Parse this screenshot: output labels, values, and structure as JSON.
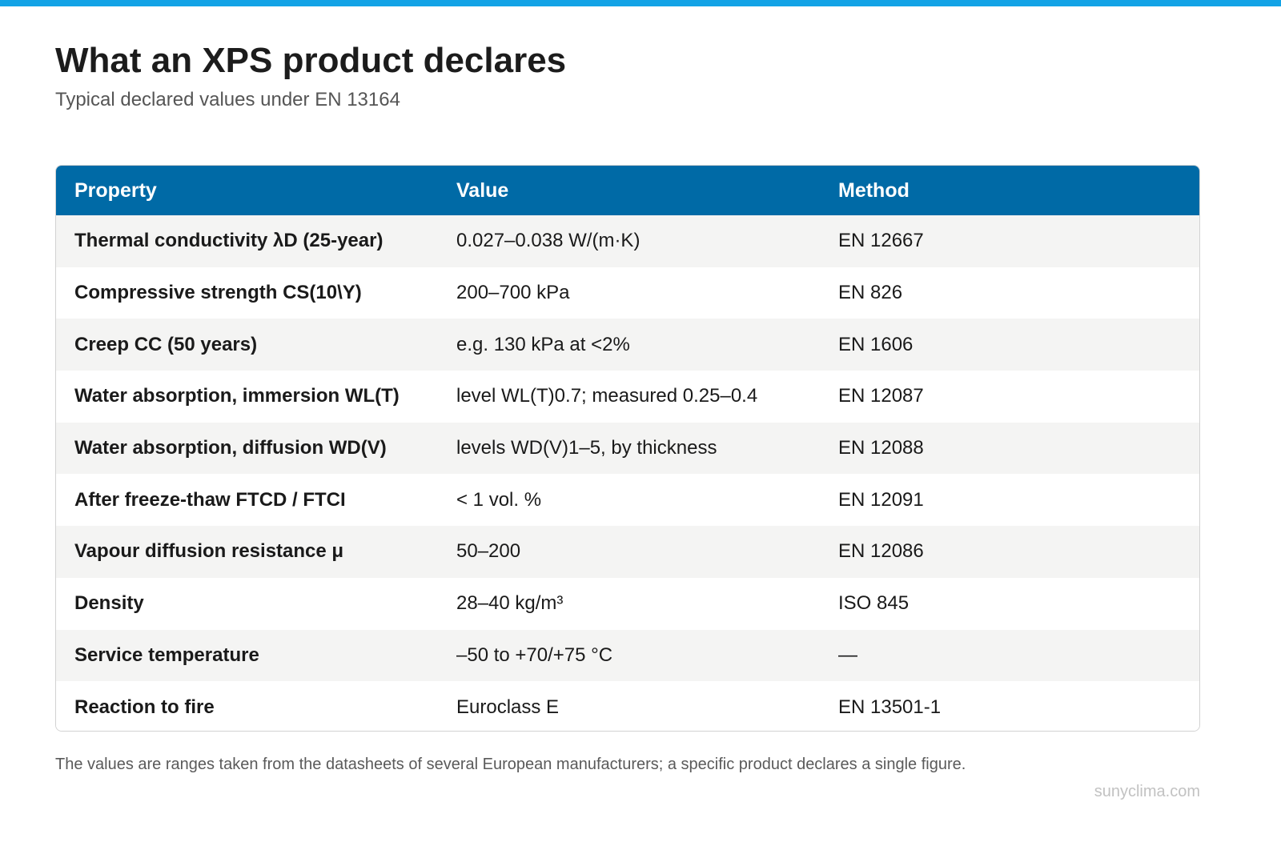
{
  "header": {
    "title": "What an XPS product declares",
    "subtitle": "Typical declared values under EN 13164",
    "accent_color": "#13a3e6"
  },
  "table": {
    "header_color": "#006aa6",
    "columns": [
      "Property",
      "Value",
      "Method"
    ],
    "rows": [
      {
        "property": "Thermal conductivity λD (25-year)",
        "value": "0.027–0.038 W/(m·K)",
        "method": "EN 12667"
      },
      {
        "property": "Compressive strength CS(10\\Y)",
        "value": "200–700 kPa",
        "method": "EN 826"
      },
      {
        "property": "Creep CC (50 years)",
        "value": "e.g. 130 kPa at <2%",
        "method": "EN 1606"
      },
      {
        "property": "Water absorption, immersion WL(T)",
        "value": "level WL(T)0.7; measured 0.25–0.4",
        "method": "EN 12087"
      },
      {
        "property": "Water absorption, diffusion WD(V)",
        "value": "levels WD(V)1–5, by thickness",
        "method": "EN 12088"
      },
      {
        "property": "After freeze-thaw FTCD / FTCI",
        "value": "< 1 vol. %",
        "method": "EN 12091"
      },
      {
        "property": "Vapour diffusion resistance μ",
        "value": "50–200",
        "method": "EN 12086"
      },
      {
        "property": "Density",
        "value": "28–40 kg/m³",
        "method": "ISO 845"
      },
      {
        "property": "Service temperature",
        "value": "–50 to +70/+75 °C",
        "method": "—"
      },
      {
        "property": "Reaction to fire",
        "value": "Euroclass E",
        "method": "EN 13501-1"
      }
    ]
  },
  "footer": {
    "note": "The values are ranges taken from the datasheets of several European manufacturers; a specific product declares a single figure.",
    "source": "sunyclima.com"
  }
}
